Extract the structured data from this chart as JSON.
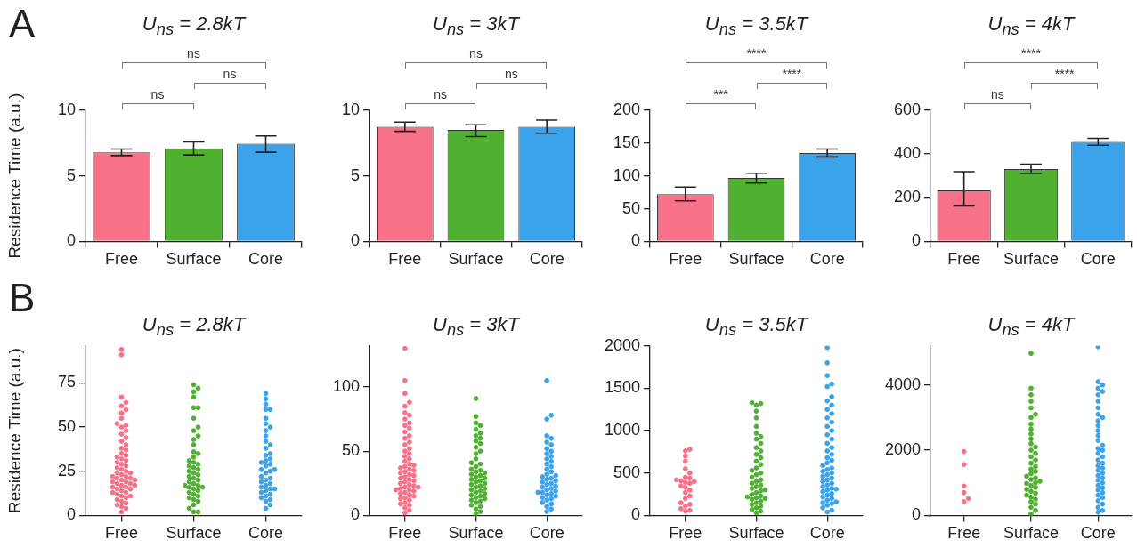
{
  "chart_data": [
    {
      "type": "bar",
      "title": "U$_{ns}$ = 2.8kT",
      "ylabel": "Residence Time (a.u.)",
      "categories": [
        "Free",
        "Surface",
        "Core"
      ],
      "values": [
        6.8,
        7.1,
        7.45
      ],
      "colors": [
        "#f77189",
        "#50b131",
        "#3ba3ec"
      ],
      "errors": [
        [
          6.55,
          7.05
        ],
        [
          6.6,
          7.6
        ],
        [
          6.8,
          8.05
        ]
      ],
      "ylim": [
        0,
        10
      ],
      "yticks": [
        0,
        5,
        10
      ],
      "annotations": [
        "A",
        "ns",
        "ns",
        "ns"
      ]
    },
    {
      "type": "bar",
      "title": "U$_{ns}$ = 3kT",
      "categories": [
        "Free",
        "Surface",
        "Core"
      ],
      "values": [
        8.75,
        8.5,
        8.75
      ],
      "colors": [
        "#f77189",
        "#50b131",
        "#3ba3ec"
      ],
      "errors": [
        [
          8.4,
          9.1
        ],
        [
          8.0,
          8.9
        ],
        [
          8.25,
          9.25
        ]
      ],
      "ylim": [
        0,
        10
      ],
      "yticks": [
        0,
        5,
        10
      ],
      "annotations": [
        "ns",
        "ns",
        "ns"
      ]
    },
    {
      "type": "bar",
      "title": "U$_{ns}$ = 3.5kT",
      "categories": [
        "Free",
        "Surface",
        "Core"
      ],
      "values": [
        72,
        97,
        135
      ],
      "colors": [
        "#f77189",
        "#50b131",
        "#3ba3ec"
      ],
      "errors": [
        [
          62,
          83
        ],
        [
          89,
          104
        ],
        [
          129,
          141
        ]
      ],
      "ylim": [
        0,
        200
      ],
      "yticks": [
        0,
        50,
        100,
        150,
        200
      ],
      "annotations": [
        "***",
        "****",
        "****"
      ]
    },
    {
      "type": "bar",
      "title": "U$_{ns}$ = 4kT",
      "categories": [
        "Free",
        "Surface",
        "Core"
      ],
      "values": [
        234,
        331,
        455
      ],
      "colors": [
        "#f77189",
        "#50b131",
        "#3ba3ec"
      ],
      "errors": [
        [
          163,
          319
        ],
        [
          311,
          354
        ],
        [
          440,
          472
        ]
      ],
      "ylim": [
        0,
        600
      ],
      "yticks": [
        0,
        200,
        400,
        600
      ],
      "annotations": [
        "ns",
        "****",
        "****"
      ]
    },
    {
      "type": "scatter",
      "title": "U$_{ns}$ = 2.8kT",
      "ylabel": "Residence Time (a.u.)",
      "categories": [
        "Free",
        "Surface",
        "Core"
      ],
      "marker": "circle",
      "ylim": [
        0,
        96
      ],
      "yticks": [
        0,
        25,
        50,
        75
      ],
      "annotations": [
        "B"
      ],
      "series": [
        {
          "color": "#f77189",
          "x": [
            "Free",
            "Free",
            "Free",
            "Free",
            "Free",
            "Free",
            "Free",
            "Free",
            "Free",
            "Free",
            "Free",
            "Free",
            "Free",
            "Free",
            "Free",
            "Free",
            "Free",
            "Free",
            "Free",
            "Free",
            "Free",
            "Free",
            "Free",
            "Free",
            "Free",
            "Free",
            "Free",
            "Free",
            "Free",
            "Free",
            "Free",
            "Free",
            "Free",
            "Free",
            "Free",
            "Free",
            "Free",
            "Free",
            "Free",
            "Free",
            "Free",
            "Free",
            "Free",
            "Free",
            "Free",
            "Free",
            "Free",
            "Free",
            "Free",
            "Free",
            "Free",
            "Free",
            "Free",
            "Free",
            "Free",
            "Free",
            "Free",
            "Free",
            "Free",
            "Free",
            "Free",
            "Free"
          ],
          "values": [
            2,
            4,
            5,
            6,
            7,
            8,
            9,
            10,
            11,
            11,
            12,
            13,
            13,
            14,
            15,
            15,
            16,
            16,
            17,
            17,
            18,
            18,
            19,
            19,
            20,
            20,
            21,
            21,
            22,
            22,
            23,
            24,
            24,
            25,
            26,
            27,
            28,
            29,
            30,
            31,
            32,
            33,
            34,
            35,
            37,
            38,
            40,
            42,
            44,
            46,
            48,
            50,
            51,
            52,
            55,
            58,
            60,
            62,
            64,
            67,
            91,
            94
          ]
        },
        {
          "color": "#50b131",
          "x": [
            "Surface",
            "Surface",
            "Surface",
            "Surface",
            "Surface",
            "Surface",
            "Surface",
            "Surface",
            "Surface",
            "Surface",
            "Surface",
            "Surface",
            "Surface",
            "Surface",
            "Surface",
            "Surface",
            "Surface",
            "Surface",
            "Surface",
            "Surface",
            "Surface",
            "Surface",
            "Surface",
            "Surface",
            "Surface",
            "Surface",
            "Surface",
            "Surface",
            "Surface",
            "Surface",
            "Surface",
            "Surface",
            "Surface",
            "Surface",
            "Surface",
            "Surface",
            "Surface",
            "Surface",
            "Surface",
            "Surface",
            "Surface",
            "Surface",
            "Surface",
            "Surface",
            "Surface"
          ],
          "values": [
            2,
            2,
            4,
            6,
            8,
            9,
            10,
            11,
            12,
            13,
            14,
            15,
            16,
            16,
            17,
            17,
            18,
            19,
            20,
            21,
            22,
            23,
            24,
            25,
            26,
            27,
            28,
            29,
            30,
            31,
            33,
            35,
            36,
            40,
            43,
            45,
            48,
            50,
            55,
            61,
            61,
            67,
            70,
            72,
            74
          ]
        },
        {
          "color": "#3ba3ec",
          "x": [
            "Core",
            "Core",
            "Core",
            "Core",
            "Core",
            "Core",
            "Core",
            "Core",
            "Core",
            "Core",
            "Core",
            "Core",
            "Core",
            "Core",
            "Core",
            "Core",
            "Core",
            "Core",
            "Core",
            "Core",
            "Core",
            "Core",
            "Core",
            "Core",
            "Core",
            "Core",
            "Core",
            "Core",
            "Core",
            "Core",
            "Core",
            "Core",
            "Core",
            "Core",
            "Core",
            "Core",
            "Core",
            "Core",
            "Core",
            "Core",
            "Core",
            "Core"
          ],
          "values": [
            4,
            6,
            8,
            9,
            10,
            11,
            12,
            13,
            14,
            15,
            15,
            16,
            17,
            18,
            19,
            20,
            21,
            22,
            24,
            25,
            26,
            26,
            28,
            29,
            30,
            31,
            32,
            34,
            35,
            38,
            40,
            42,
            45,
            48,
            50,
            52,
            55,
            60,
            60,
            63,
            66,
            69
          ]
        }
      ]
    },
    {
      "type": "scatter",
      "title": "U$_{ns}$ = 3kT",
      "categories": [
        "Free",
        "Surface",
        "Core"
      ],
      "marker": "circle",
      "ylim": [
        0,
        132
      ],
      "yticks": [
        0,
        50,
        100
      ],
      "series": [
        {
          "color": "#f77189",
          "x": [
            "Free",
            "Free",
            "Free",
            "Free",
            "Free",
            "Free",
            "Free",
            "Free",
            "Free",
            "Free",
            "Free",
            "Free",
            "Free",
            "Free",
            "Free",
            "Free",
            "Free",
            "Free",
            "Free",
            "Free",
            "Free",
            "Free",
            "Free",
            "Free",
            "Free",
            "Free",
            "Free",
            "Free",
            "Free",
            "Free",
            "Free",
            "Free",
            "Free",
            "Free",
            "Free",
            "Free",
            "Free",
            "Free",
            "Free",
            "Free",
            "Free",
            "Free",
            "Free",
            "Free",
            "Free",
            "Free",
            "Free",
            "Free",
            "Free",
            "Free",
            "Free",
            "Free",
            "Free",
            "Free",
            "Free",
            "Free",
            "Free",
            "Free",
            "Free"
          ],
          "values": [
            2,
            4,
            6,
            8,
            9,
            10,
            12,
            13,
            14,
            15,
            16,
            17,
            18,
            19,
            20,
            20,
            21,
            22,
            22,
            23,
            24,
            25,
            26,
            27,
            28,
            29,
            30,
            31,
            32,
            33,
            34,
            35,
            36,
            37,
            38,
            39,
            40,
            42,
            44,
            46,
            48,
            50,
            52,
            55,
            57,
            60,
            62,
            65,
            68,
            70,
            72,
            75,
            78,
            80,
            85,
            88,
            95,
            105,
            130
          ]
        },
        {
          "color": "#50b131",
          "x": [
            "Surface",
            "Surface",
            "Surface",
            "Surface",
            "Surface",
            "Surface",
            "Surface",
            "Surface",
            "Surface",
            "Surface",
            "Surface",
            "Surface",
            "Surface",
            "Surface",
            "Surface",
            "Surface",
            "Surface",
            "Surface",
            "Surface",
            "Surface",
            "Surface",
            "Surface",
            "Surface",
            "Surface",
            "Surface",
            "Surface",
            "Surface",
            "Surface",
            "Surface",
            "Surface",
            "Surface",
            "Surface",
            "Surface",
            "Surface",
            "Surface",
            "Surface",
            "Surface",
            "Surface",
            "Surface",
            "Surface",
            "Surface",
            "Surface",
            "Surface",
            "Surface",
            "Surface",
            "Surface",
            "Surface",
            "Surface",
            "Surface"
          ],
          "values": [
            1,
            3,
            5,
            7,
            8,
            10,
            11,
            12,
            13,
            14,
            15,
            16,
            17,
            18,
            19,
            20,
            21,
            22,
            23,
            24,
            25,
            26,
            27,
            28,
            29,
            30,
            31,
            32,
            33,
            34,
            35,
            36,
            38,
            40,
            41,
            44,
            48,
            50,
            53,
            56,
            58,
            60,
            62,
            64,
            67,
            70,
            72,
            77,
            91
          ]
        },
        {
          "color": "#3ba3ec",
          "x": [
            "Core",
            "Core",
            "Core",
            "Core",
            "Core",
            "Core",
            "Core",
            "Core",
            "Core",
            "Core",
            "Core",
            "Core",
            "Core",
            "Core",
            "Core",
            "Core",
            "Core",
            "Core",
            "Core",
            "Core",
            "Core",
            "Core",
            "Core",
            "Core",
            "Core",
            "Core",
            "Core",
            "Core",
            "Core",
            "Core",
            "Core",
            "Core",
            "Core",
            "Core",
            "Core",
            "Core",
            "Core",
            "Core",
            "Core",
            "Core",
            "Core",
            "Core",
            "Core",
            "Core"
          ],
          "values": [
            3,
            5,
            7,
            9,
            10,
            12,
            13,
            14,
            15,
            16,
            17,
            18,
            18,
            19,
            20,
            21,
            22,
            23,
            24,
            25,
            26,
            27,
            28,
            29,
            30,
            31,
            32,
            34,
            36,
            38,
            40,
            42,
            44,
            46,
            48,
            50,
            52,
            55,
            57,
            60,
            62,
            75,
            78,
            105
          ]
        }
      ]
    },
    {
      "type": "scatter",
      "title": "U$_{ns}$ = 3.5kT",
      "categories": [
        "Free",
        "Surface",
        "Core"
      ],
      "marker": "circle",
      "ylim": [
        0,
        2000
      ],
      "yticks": [
        0,
        500,
        1000,
        1500,
        2000
      ],
      "series": [
        {
          "color": "#f77189",
          "x": [
            "Free",
            "Free",
            "Free",
            "Free",
            "Free",
            "Free",
            "Free",
            "Free",
            "Free",
            "Free",
            "Free",
            "Free",
            "Free",
            "Free",
            "Free",
            "Free",
            "Free",
            "Free",
            "Free",
            "Free",
            "Free",
            "Free",
            "Free",
            "Free",
            "Free"
          ],
          "values": [
            50,
            60,
            80,
            110,
            130,
            150,
            200,
            230,
            270,
            300,
            330,
            350,
            380,
            390,
            400,
            410,
            420,
            440,
            450,
            500,
            550,
            640,
            700,
            760,
            780
          ]
        },
        {
          "color": "#50b131",
          "x": [
            "Surface",
            "Surface",
            "Surface",
            "Surface",
            "Surface",
            "Surface",
            "Surface",
            "Surface",
            "Surface",
            "Surface",
            "Surface",
            "Surface",
            "Surface",
            "Surface",
            "Surface",
            "Surface",
            "Surface",
            "Surface",
            "Surface",
            "Surface",
            "Surface",
            "Surface",
            "Surface",
            "Surface",
            "Surface",
            "Surface",
            "Surface",
            "Surface",
            "Surface",
            "Surface",
            "Surface",
            "Surface",
            "Surface",
            "Surface",
            "Surface",
            "Surface",
            "Surface",
            "Surface",
            "Surface",
            "Surface",
            "Surface",
            "Surface",
            "Surface",
            "Surface"
          ],
          "values": [
            30,
            50,
            70,
            90,
            110,
            130,
            150,
            170,
            190,
            200,
            210,
            220,
            230,
            250,
            270,
            290,
            300,
            320,
            340,
            360,
            380,
            400,
            420,
            450,
            480,
            500,
            530,
            560,
            600,
            640,
            680,
            720,
            760,
            800,
            850,
            900,
            930,
            970,
            1050,
            1150,
            1230,
            1300,
            1320,
            1330
          ]
        },
        {
          "color": "#3ba3ec",
          "x": [
            "Core",
            "Core",
            "Core",
            "Core",
            "Core",
            "Core",
            "Core",
            "Core",
            "Core",
            "Core",
            "Core",
            "Core",
            "Core",
            "Core",
            "Core",
            "Core",
            "Core",
            "Core",
            "Core",
            "Core",
            "Core",
            "Core",
            "Core",
            "Core",
            "Core",
            "Core",
            "Core",
            "Core",
            "Core",
            "Core",
            "Core",
            "Core",
            "Core",
            "Core",
            "Core",
            "Core",
            "Core",
            "Core",
            "Core",
            "Core",
            "Core",
            "Core",
            "Core",
            "Core",
            "Core",
            "Core",
            "Core",
            "Core",
            "Core",
            "Core",
            "Core",
            "Core"
          ],
          "values": [
            40,
            60,
            90,
            120,
            140,
            150,
            160,
            180,
            200,
            220,
            240,
            260,
            280,
            300,
            310,
            320,
            340,
            360,
            380,
            400,
            420,
            440,
            460,
            480,
            500,
            520,
            540,
            560,
            590,
            620,
            650,
            680,
            720,
            760,
            800,
            850,
            900,
            950,
            1000,
            1050,
            1100,
            1150,
            1200,
            1250,
            1300,
            1350,
            1400,
            1520,
            1550,
            1650,
            1800,
            1980
          ]
        }
      ]
    },
    {
      "type": "scatter",
      "title": "U$_{ns}$ = 4kT",
      "categories": [
        "Free",
        "Surface",
        "Core"
      ],
      "marker": "circle",
      "ylim": [
        0,
        5200
      ],
      "yticks": [
        0,
        2000,
        4000
      ],
      "series": [
        {
          "color": "#f77189",
          "x": [
            "Free",
            "Free",
            "Free",
            "Free",
            "Free",
            "Free"
          ],
          "values": [
            420,
            520,
            700,
            900,
            1560,
            1960
          ]
        },
        {
          "color": "#50b131",
          "x": [
            "Surface",
            "Surface",
            "Surface",
            "Surface",
            "Surface",
            "Surface",
            "Surface",
            "Surface",
            "Surface",
            "Surface",
            "Surface",
            "Surface",
            "Surface",
            "Surface",
            "Surface",
            "Surface",
            "Surface",
            "Surface",
            "Surface",
            "Surface",
            "Surface",
            "Surface",
            "Surface",
            "Surface",
            "Surface",
            "Surface",
            "Surface",
            "Surface",
            "Surface",
            "Surface",
            "Surface",
            "Surface",
            "Surface",
            "Surface",
            "Surface",
            "Surface",
            "Surface",
            "Surface",
            "Surface",
            "Surface",
            "Surface"
          ],
          "values": [
            50,
            150,
            250,
            350,
            420,
            500,
            560,
            620,
            680,
            740,
            800,
            860,
            920,
            980,
            1000,
            1050,
            1100,
            1150,
            1200,
            1280,
            1350,
            1420,
            1500,
            1600,
            1700,
            1800,
            1900,
            2000,
            2100,
            2200,
            2350,
            2500,
            2650,
            2800,
            3000,
            3100,
            3300,
            3500,
            3700,
            3900,
            4970
          ]
        },
        {
          "color": "#3ba3ec",
          "x": [
            "Core",
            "Core",
            "Core",
            "Core",
            "Core",
            "Core",
            "Core",
            "Core",
            "Core",
            "Core",
            "Core",
            "Core",
            "Core",
            "Core",
            "Core",
            "Core",
            "Core",
            "Core",
            "Core",
            "Core",
            "Core",
            "Core",
            "Core",
            "Core",
            "Core",
            "Core",
            "Core",
            "Core",
            "Core",
            "Core",
            "Core",
            "Core",
            "Core",
            "Core",
            "Core",
            "Core",
            "Core",
            "Core",
            "Core",
            "Core",
            "Core"
          ],
          "values": [
            100,
            150,
            250,
            350,
            450,
            550,
            620,
            700,
            780,
            850,
            920,
            1000,
            1080,
            1150,
            1220,
            1300,
            1380,
            1450,
            1520,
            1600,
            1700,
            1800,
            1900,
            2000,
            2050,
            2150,
            2300,
            2450,
            2600,
            2750,
            2900,
            3000,
            3100,
            3300,
            3500,
            3700,
            3800,
            3900,
            4000,
            4100,
            5170
          ]
        }
      ]
    }
  ]
}
